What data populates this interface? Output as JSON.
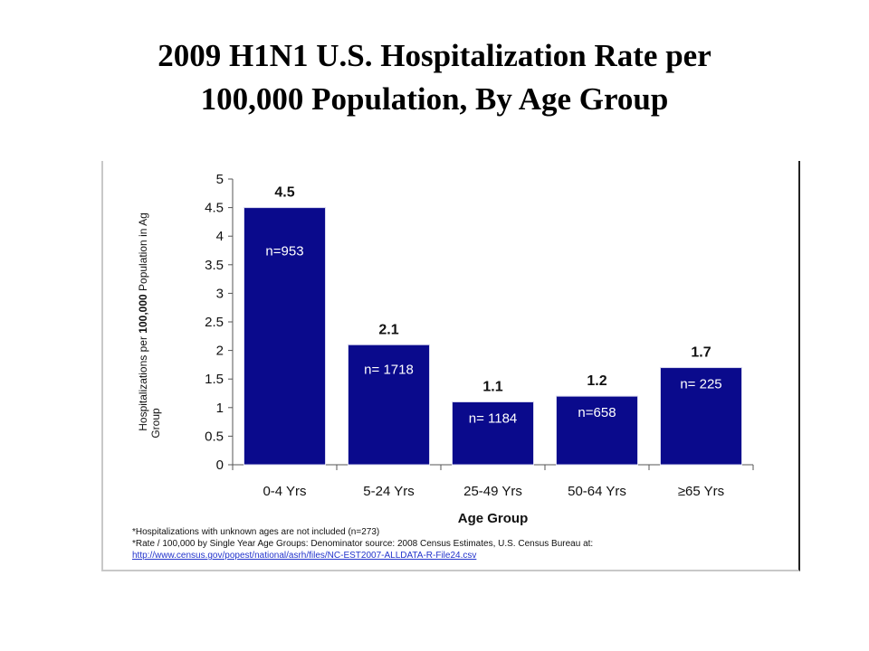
{
  "title_line1": "2009 H1N1 U.S. Hospitalization Rate per",
  "title_line2": "100,000 Population, By Age Group",
  "chart_data": {
    "type": "bar",
    "categories": [
      "0-4 Yrs",
      "5-24 Yrs",
      "25-49 Yrs",
      "50-64 Yrs",
      "≥65 Yrs"
    ],
    "values": [
      4.5,
      2.1,
      1.1,
      1.2,
      1.7
    ],
    "value_labels": [
      "4.5",
      "2.1",
      "1.1",
      "1.2",
      "1.7"
    ],
    "n_labels": [
      "n=953",
      "n= 1718",
      "n= 1184",
      "n=658",
      "n= 225"
    ],
    "ylim": [
      0,
      5
    ],
    "yticks": [
      "0",
      "0.5",
      "1",
      "1.5",
      "2",
      "2.5",
      "3",
      "3.5",
      "4",
      "4.5",
      "5"
    ],
    "ylabel_pre": "Hospitalizations per ",
    "ylabel_bold": "100,000",
    "ylabel_post": " Population in Ag",
    "ylabel_line2": "Group",
    "xlabel": "Age Group",
    "bar_color": "#0a0a8c",
    "grid": false
  },
  "footnotes": {
    "line1": "*Hospitalizations with unknown ages are not included (n=273)",
    "line2": "*Rate / 100,000 by Single Year Age Groups: Denominator source: 2008 Census Estimates, U.S. Census Bureau at:",
    "link": "http://www.census.gov/popest/national/asrh/files/NC-EST2007-ALLDATA-R-File24.csv"
  }
}
